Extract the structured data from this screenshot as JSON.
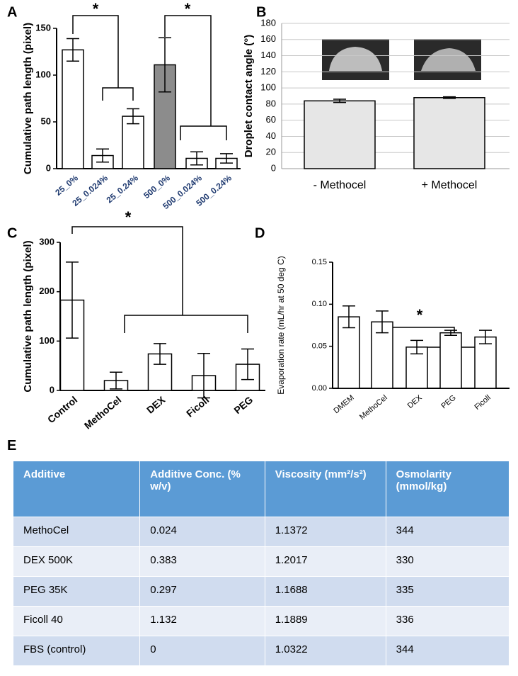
{
  "chart_data": [
    {
      "type": "bar",
      "label": "A",
      "ylabel": "Cumulative path length (pixel)",
      "categories": [
        "25_0%",
        "25_0.024%",
        "25_0.24%",
        "500_0%",
        "500_0.024%",
        "500_0.24%"
      ],
      "values": [
        127,
        14,
        56,
        111,
        11,
        11
      ],
      "errors": [
        12,
        7,
        8,
        29,
        7,
        5
      ],
      "colors": [
        "#ffffff",
        "#ffffff",
        "#ffffff",
        "#8c8c8c",
        "#ffffff",
        "#ffffff"
      ],
      "ylim": [
        0,
        150
      ],
      "yticks": [
        0,
        50,
        100,
        150
      ],
      "grid": false,
      "annotations": [
        "*",
        "*"
      ]
    },
    {
      "type": "bar",
      "label": "B",
      "ylabel": "Droplet contact angle (°)",
      "categories": [
        "- Methocel",
        "+ Methocel"
      ],
      "values": [
        84,
        88
      ],
      "errors": [
        2,
        1
      ],
      "colors": [
        "#e6e6e6",
        "#e6e6e6"
      ],
      "ylim": [
        0,
        180
      ],
      "yticks": [
        0,
        20,
        40,
        60,
        80,
        100,
        120,
        140,
        160,
        180
      ],
      "grid": true,
      "annotations": []
    },
    {
      "type": "bar",
      "label": "C",
      "ylabel": "Cumulative path length (pixel)",
      "categories": [
        "Control",
        "MethoCel",
        "DEX",
        "Ficoll",
        "PEG"
      ],
      "values": [
        183,
        20,
        74,
        30,
        53
      ],
      "errors": [
        77,
        17,
        21,
        45,
        31
      ],
      "colors": [
        "#ffffff",
        "#ffffff",
        "#ffffff",
        "#ffffff",
        "#ffffff"
      ],
      "ylim": [
        0,
        300
      ],
      "yticks": [
        0,
        100,
        200,
        300
      ],
      "grid": false,
      "annotations": [
        "*"
      ]
    },
    {
      "type": "bar",
      "label": "D",
      "ylabel": "Evaporation rate (mL/hr at 50 deg C)",
      "categories": [
        "DMEM",
        "MethoCel",
        "DEX",
        "PEG",
        "Ficoll"
      ],
      "values": [
        0.085,
        0.079,
        0.049,
        0.066,
        0.061
      ],
      "errors": [
        0.013,
        0.013,
        0.008,
        0.003,
        0.008
      ],
      "colors": [
        "#ffffff",
        "#ffffff",
        "#ffffff",
        "#ffffff",
        "#ffffff"
      ],
      "ylim": [
        0,
        0.15
      ],
      "yticks": [
        {
          "value": 0,
          "label": "0.00"
        },
        {
          "value": 0.05,
          "label": "0.05"
        },
        {
          "value": 0.1,
          "label": "0.10"
        },
        0.15
      ],
      "grid": false,
      "annotations": [
        "*"
      ]
    }
  ],
  "table": {
    "label": "E",
    "header": [
      "Additive",
      "Additive Conc. (% w/v)",
      "Viscosity (mm²/s²)",
      "Osmolarity (mmol/kg)"
    ],
    "rows": [
      [
        "MethoCel",
        "0.024",
        "1.1372",
        "344"
      ],
      [
        "DEX 500K",
        "0.383",
        "1.2017",
        "330"
      ],
      [
        "PEG 35K",
        "0.297",
        "1.1688",
        "335"
      ],
      [
        "Ficoll 40",
        "1.132",
        "1.1889",
        "336"
      ],
      [
        "FBS (control)",
        "0",
        "1.0322",
        "344"
      ]
    ]
  }
}
